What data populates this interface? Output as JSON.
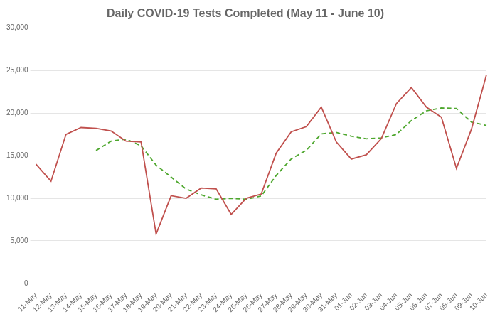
{
  "chart_data": {
    "type": "line",
    "title": "Daily COVID-19 Tests Completed (May 11 - June 10)",
    "categories": [
      "11-May",
      "12-May",
      "13-May",
      "14-May",
      "15-May",
      "16-May",
      "17-May",
      "18-May",
      "19-May",
      "20-May",
      "21-May",
      "22-May",
      "23-May",
      "24-May",
      "25-May",
      "26-May",
      "27-May",
      "28-May",
      "29-May",
      "30-May",
      "31-May",
      "01-Jun",
      "02-Jun",
      "03-Jun",
      "04-Jun",
      "05-Jun",
      "06-Jun",
      "07-Jun",
      "08-Jun",
      "09-Jun",
      "10-Jun"
    ],
    "series": [
      {
        "color": "#c0504d",
        "line_style": "solid",
        "values": [
          14000,
          12000,
          17500,
          18300,
          18200,
          17900,
          16700,
          16600,
          5800,
          10300,
          10000,
          11200,
          11100,
          8100,
          10000,
          10500,
          15300,
          17800,
          18400,
          20700,
          16600,
          14600,
          15100,
          17000,
          21100,
          23000,
          20700,
          19500,
          13500,
          18100,
          24500
        ]
      },
      {
        "color": "#4ea72e",
        "line_style": "dashed",
        "values": [
          null,
          null,
          null,
          null,
          15600,
          16700,
          16940,
          16160,
          13880,
          12480,
          11080,
          10400,
          9880,
          9980,
          9880,
          10260,
          12680,
          14620,
          15620,
          17560,
          17720,
          17280,
          16980,
          17080,
          17480,
          19120,
          20260,
          20600,
          20540,
          18940,
          18540
        ]
      }
    ],
    "ylim": [
      0,
      30000
    ],
    "yticks": [
      0,
      {
        "value": 5000,
        "label": "5,000"
      },
      {
        "value": 10000,
        "label": "10,000"
      },
      {
        "value": 15000,
        "label": "15,000"
      },
      {
        "value": 20000,
        "label": "20,000"
      },
      {
        "value": 25000,
        "label": "25,000"
      },
      {
        "value": 30000,
        "label": "30,000"
      }
    ],
    "grid": true
  }
}
